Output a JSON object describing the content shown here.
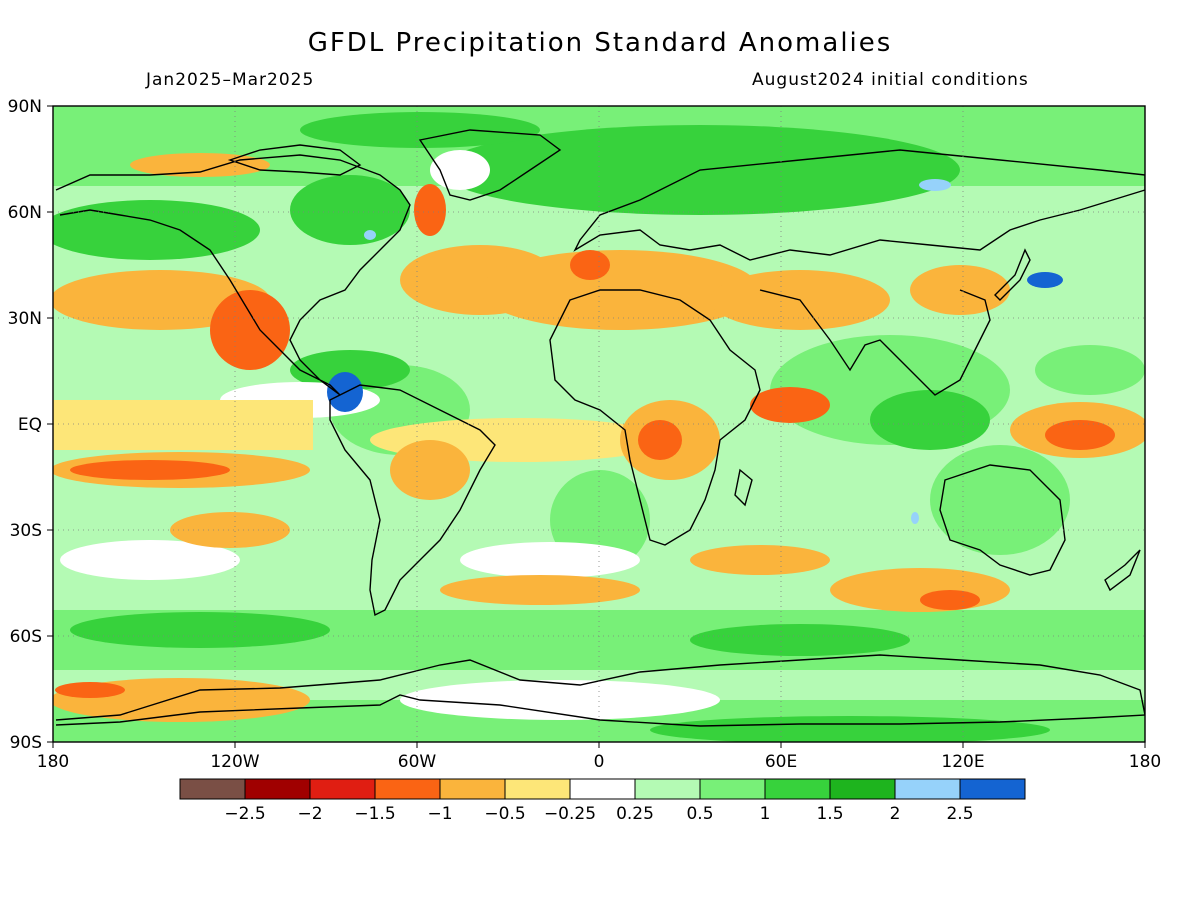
{
  "title": "GFDL Precipitation Standard Anomalies",
  "subtitle_left": "Jan2025–Mar2025",
  "subtitle_right": "August2024 initial conditions",
  "lat_labels": [
    "90N",
    "60N",
    "30N",
    "EQ",
    "30S",
    "60S",
    "90S"
  ],
  "lon_labels": [
    "180",
    "120W",
    "60W",
    "0",
    "60E",
    "120E",
    "180"
  ],
  "legend": {
    "colors": [
      "#7a4f45",
      "#a00000",
      "#e01e12",
      "#fa6414",
      "#fab43c",
      "#fde678",
      "#ffffff",
      "#b4fab4",
      "#78f078",
      "#37d23c",
      "#1eb41e",
      "#96d2fa",
      "#1464d2"
    ],
    "labels": [
      "−2.5",
      "−2",
      "−1.5",
      "−1",
      "−0.5",
      "−0.25",
      "0.25",
      "0.5",
      "1",
      "1.5",
      "2",
      "2.5"
    ]
  },
  "colors": {
    "ocean_background": "#b4fab4",
    "land_background": "#78f078",
    "coastline": "#000000",
    "grid": "#808080"
  }
}
